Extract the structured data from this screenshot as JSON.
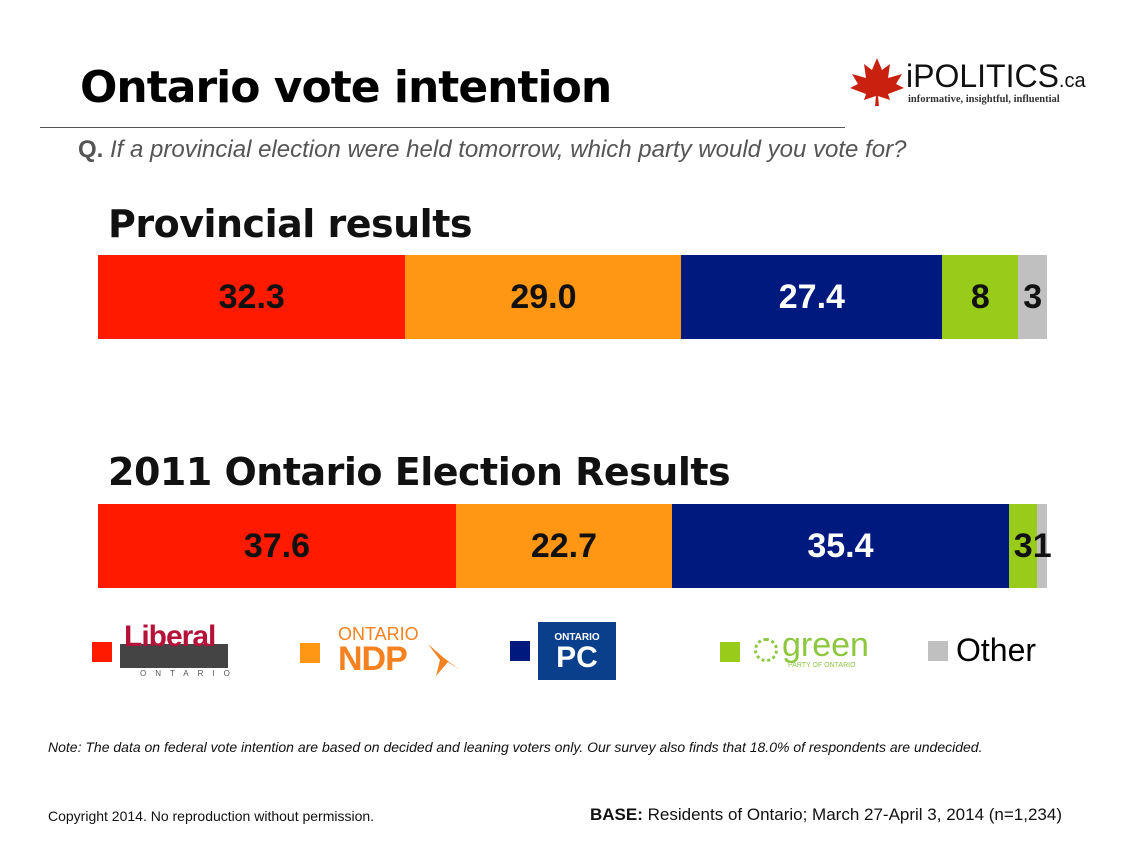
{
  "title": "Ontario vote intention",
  "logo": {
    "name": "iPOLITICS",
    "suffix": ".ca",
    "tagline": "informative, insightful, influential"
  },
  "question": {
    "prefix": "Q.",
    "text": "If a provincial election were held tomorrow, which party would you vote for?"
  },
  "chart_data": [
    {
      "type": "bar",
      "stacked": true,
      "orientation": "horizontal",
      "title": "Provincial results",
      "series": [
        {
          "name": "Liberal",
          "value": 32.3,
          "label": "32.3"
        },
        {
          "name": "NDP",
          "value": 29.0,
          "label": "29.0"
        },
        {
          "name": "PC",
          "value": 27.4,
          "label": "27.4"
        },
        {
          "name": "Green",
          "value": 8,
          "label": "8"
        },
        {
          "name": "Other",
          "value": 3,
          "label": "3"
        }
      ]
    },
    {
      "type": "bar",
      "stacked": true,
      "orientation": "horizontal",
      "title": "2011 Ontario Election Results",
      "series": [
        {
          "name": "Liberal",
          "value": 37.6,
          "label": "37.6"
        },
        {
          "name": "NDP",
          "value": 22.7,
          "label": "22.7"
        },
        {
          "name": "PC",
          "value": 35.4,
          "label": "35.4"
        },
        {
          "name": "Green",
          "value": 3,
          "label": "3"
        },
        {
          "name": "Other",
          "value": 1,
          "label": "1"
        }
      ]
    }
  ],
  "colors": {
    "Liberal": "#ff1a00",
    "NDP": "#ff9614",
    "PC": "#00197f",
    "Green": "#99cc1a",
    "Other": "#c0c0c0"
  },
  "label_colors": {
    "Liberal": "#111",
    "NDP": "#111",
    "PC": "#fff",
    "Green": "#111",
    "Other": "#111"
  },
  "legend": {
    "liberal": {
      "logo": "Liberal",
      "sub": "ONTARIO"
    },
    "ndp": {
      "top": "ONTARIO",
      "main": "NDP"
    },
    "pc": {
      "top": "ONTARIO",
      "main": "PC"
    },
    "green": {
      "main": "green",
      "sub": "PARTY OF ONTARIO"
    },
    "other": "Other"
  },
  "note": "Note: The data on federal vote intention are based on decided and leaning voters only. Our survey also finds that 18.0% of respondents are undecided.",
  "copyright": "Copyright 2014. No reproduction without permission.",
  "base": {
    "label": "BASE:",
    "text": " Residents of Ontario; March 27-April 3, 2014 (n=1,234)"
  }
}
